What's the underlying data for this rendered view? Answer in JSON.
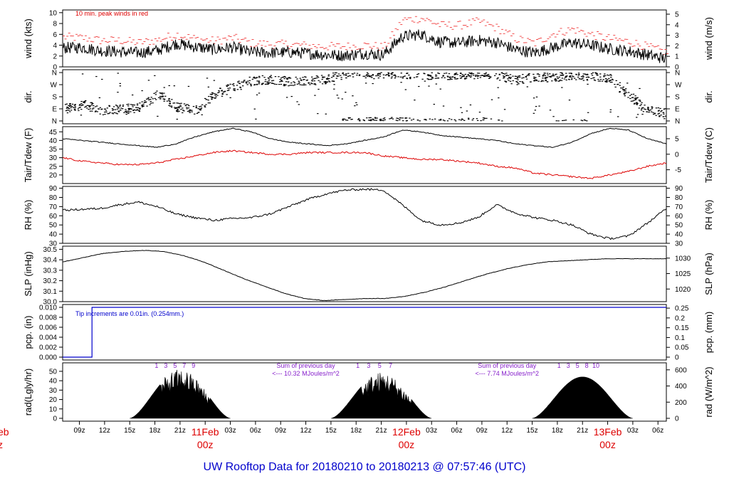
{
  "title": "UW Rooftop Data for 20180210  to  20180213 @ 07:57:46  (UTC)",
  "chart_data": [
    {
      "type": "line",
      "panel": "wind",
      "ylabel": "wind (kts)",
      "ylabel_right": "wind (m/s)",
      "ylim": [
        0,
        10.5
      ],
      "yticks": [
        0,
        2,
        4,
        6,
        8,
        10
      ],
      "yticks_right": [
        0,
        1,
        2,
        3,
        4,
        5
      ],
      "annotation": "10 min. peak winds in red",
      "series": [
        {
          "values": [
            3.5,
            3.6,
            3.0,
            2.8,
            2.6,
            3.0,
            4.3,
            3.7,
            3.2,
            3.6,
            2.7,
            2.6,
            2.7,
            2.5,
            2.2,
            2.1,
            2.5,
            2.2,
            5.6,
            6.0,
            4.6,
            4.4,
            4.9,
            4.5,
            3.2,
            2.6,
            3.6,
            4.5,
            4.0,
            3.3,
            2.9,
            2.2,
            1.5
          ]
        },
        {
          "values": [
            5.3,
            5.2,
            4.7,
            4.7,
            4.3,
            4.8,
            5.8,
            5.0,
            4.6,
            5.2,
            4.2,
            4.0,
            4.0,
            3.7,
            3.6,
            3.6,
            3.8,
            3.5,
            8.5,
            8.8,
            7.5,
            7.5,
            8.2,
            7.0,
            5.0,
            4.2,
            6.0,
            6.8,
            5.8,
            5.0,
            4.5,
            3.5,
            2.5
          ]
        }
      ]
    },
    {
      "type": "scatter",
      "panel": "dir",
      "ylabel": "dir.",
      "ylabel_right": "dir.",
      "yticks": [
        "N",
        "W",
        "S",
        "E",
        "N"
      ],
      "values": [
        90,
        120,
        80,
        85,
        100,
        200,
        100,
        80,
        200,
        250,
        300,
        310,
        290,
        300,
        310,
        350,
        350,
        352,
        350,
        345,
        340,
        345,
        350,
        345,
        300,
        330,
        320,
        340,
        330,
        320,
        200,
        80,
        60
      ]
    },
    {
      "type": "line",
      "panel": "temperature",
      "ylabel": "Tair/Tdew (F)",
      "ylabel_right": "Tair/Tdew (C)",
      "ylim": [
        15,
        48
      ],
      "yticks": [
        20,
        25,
        30,
        35,
        40,
        45
      ],
      "yticks_right": [
        -5,
        0,
        5
      ],
      "series": [
        {
          "values": [
            41,
            40,
            39,
            38,
            37,
            36,
            38,
            42,
            45,
            47,
            45,
            41,
            39,
            38,
            37,
            38,
            40,
            42,
            46,
            45,
            43,
            42,
            41,
            40,
            38,
            37,
            36,
            39,
            44,
            47,
            46,
            41,
            38
          ],
          "color": "#000000"
        },
        {
          "values": [
            30,
            28,
            27,
            26,
            26,
            27,
            29,
            31,
            33,
            34,
            33,
            32,
            32,
            33,
            33,
            33,
            33,
            31,
            30,
            29,
            29,
            28,
            27,
            25,
            24,
            21,
            20,
            19,
            18,
            20,
            22,
            25,
            27
          ],
          "color": "#dd0000"
        }
      ]
    },
    {
      "type": "line",
      "panel": "rh",
      "ylabel": "RH (%)",
      "ylabel_right": "RH (%)",
      "ylim": [
        30,
        92
      ],
      "yticks": [
        30,
        40,
        50,
        60,
        70,
        80,
        90
      ],
      "values": [
        66,
        67,
        68,
        72,
        75,
        70,
        62,
        58,
        55,
        57,
        58,
        62,
        70,
        78,
        84,
        88,
        89,
        88,
        72,
        55,
        50,
        52,
        58,
        72,
        63,
        58,
        55,
        50,
        40,
        35,
        38,
        52,
        68
      ]
    },
    {
      "type": "line",
      "panel": "slp",
      "ylabel": "SLP (inHg)",
      "ylabel_right": "SLP (hPa)",
      "ylim": [
        30.0,
        30.53
      ],
      "yticks": [
        30.0,
        30.1,
        30.2,
        30.3,
        30.4,
        30.5
      ],
      "yticks_right": [
        1020,
        1025,
        1030
      ],
      "values": [
        30.38,
        30.42,
        30.46,
        30.48,
        30.49,
        30.48,
        30.44,
        30.38,
        30.3,
        30.22,
        30.15,
        30.08,
        30.03,
        30.01,
        30.02,
        30.03,
        30.03,
        30.05,
        30.09,
        30.14,
        30.2,
        30.26,
        30.31,
        30.35,
        30.38,
        30.39,
        30.4,
        30.41,
        30.41,
        30.41,
        30.41
      ]
    },
    {
      "type": "line",
      "panel": "precip",
      "ylabel": "pcp. (in)",
      "ylabel_right": "pcp. (mm)",
      "ylim": [
        0,
        0.01
      ],
      "yticks": [
        0.0,
        0.002,
        0.004,
        0.006,
        0.008,
        0.01
      ],
      "yticks_right": [
        0,
        0.05,
        0.1,
        0.15,
        0.2,
        0.25
      ],
      "annotation": "Tip increments are 0.01in. (0.254mm.)",
      "step_hour_utc": 10.5,
      "values": [
        0,
        0.01
      ]
    },
    {
      "type": "area",
      "panel": "radiation",
      "ylabel": "rad(Lgly/hr)",
      "ylabel_right": "rad (W/m^2)",
      "ylim": [
        0,
        56
      ],
      "yticks": [
        0,
        10,
        20,
        30,
        40,
        50
      ],
      "yticks_right": [
        0,
        200,
        400,
        600
      ],
      "days": [
        {
          "peak": 50,
          "noisy": true,
          "hour_labels": [
            "1",
            "3",
            "5",
            "7",
            "9"
          ],
          "sum_label": "Sum of previous day",
          "sum_value": "<--- 10.32 MJoules/m^2"
        },
        {
          "peak": 47,
          "noisy": true,
          "hour_labels": [
            "1",
            "3",
            "5",
            "7"
          ],
          "sum_label": "Sum of previous day",
          "sum_value": "<--- 7.74 MJoules/m^2"
        },
        {
          "peak": 44,
          "noisy": false,
          "hour_labels": [
            "1",
            "3",
            "5",
            "8",
            "10"
          ]
        }
      ]
    }
  ],
  "x_axis": {
    "tick_labels": [
      "09z",
      "12z",
      "15z",
      "18z",
      "21z",
      "00z",
      "03z",
      "06z",
      "09z",
      "12z",
      "15z",
      "18z",
      "21z",
      "00z",
      "03z",
      "06z",
      "09z",
      "12z",
      "15z",
      "18z",
      "21z",
      "00z",
      "03z",
      "06z"
    ],
    "day_labels": [
      {
        "date": "11Feb",
        "time": "00z"
      },
      {
        "date": "12Feb",
        "time": "00z"
      },
      {
        "date": "13Feb",
        "time": "00z"
      }
    ],
    "clipped_left_date": "eb",
    "clipped_left_time": "z"
  }
}
